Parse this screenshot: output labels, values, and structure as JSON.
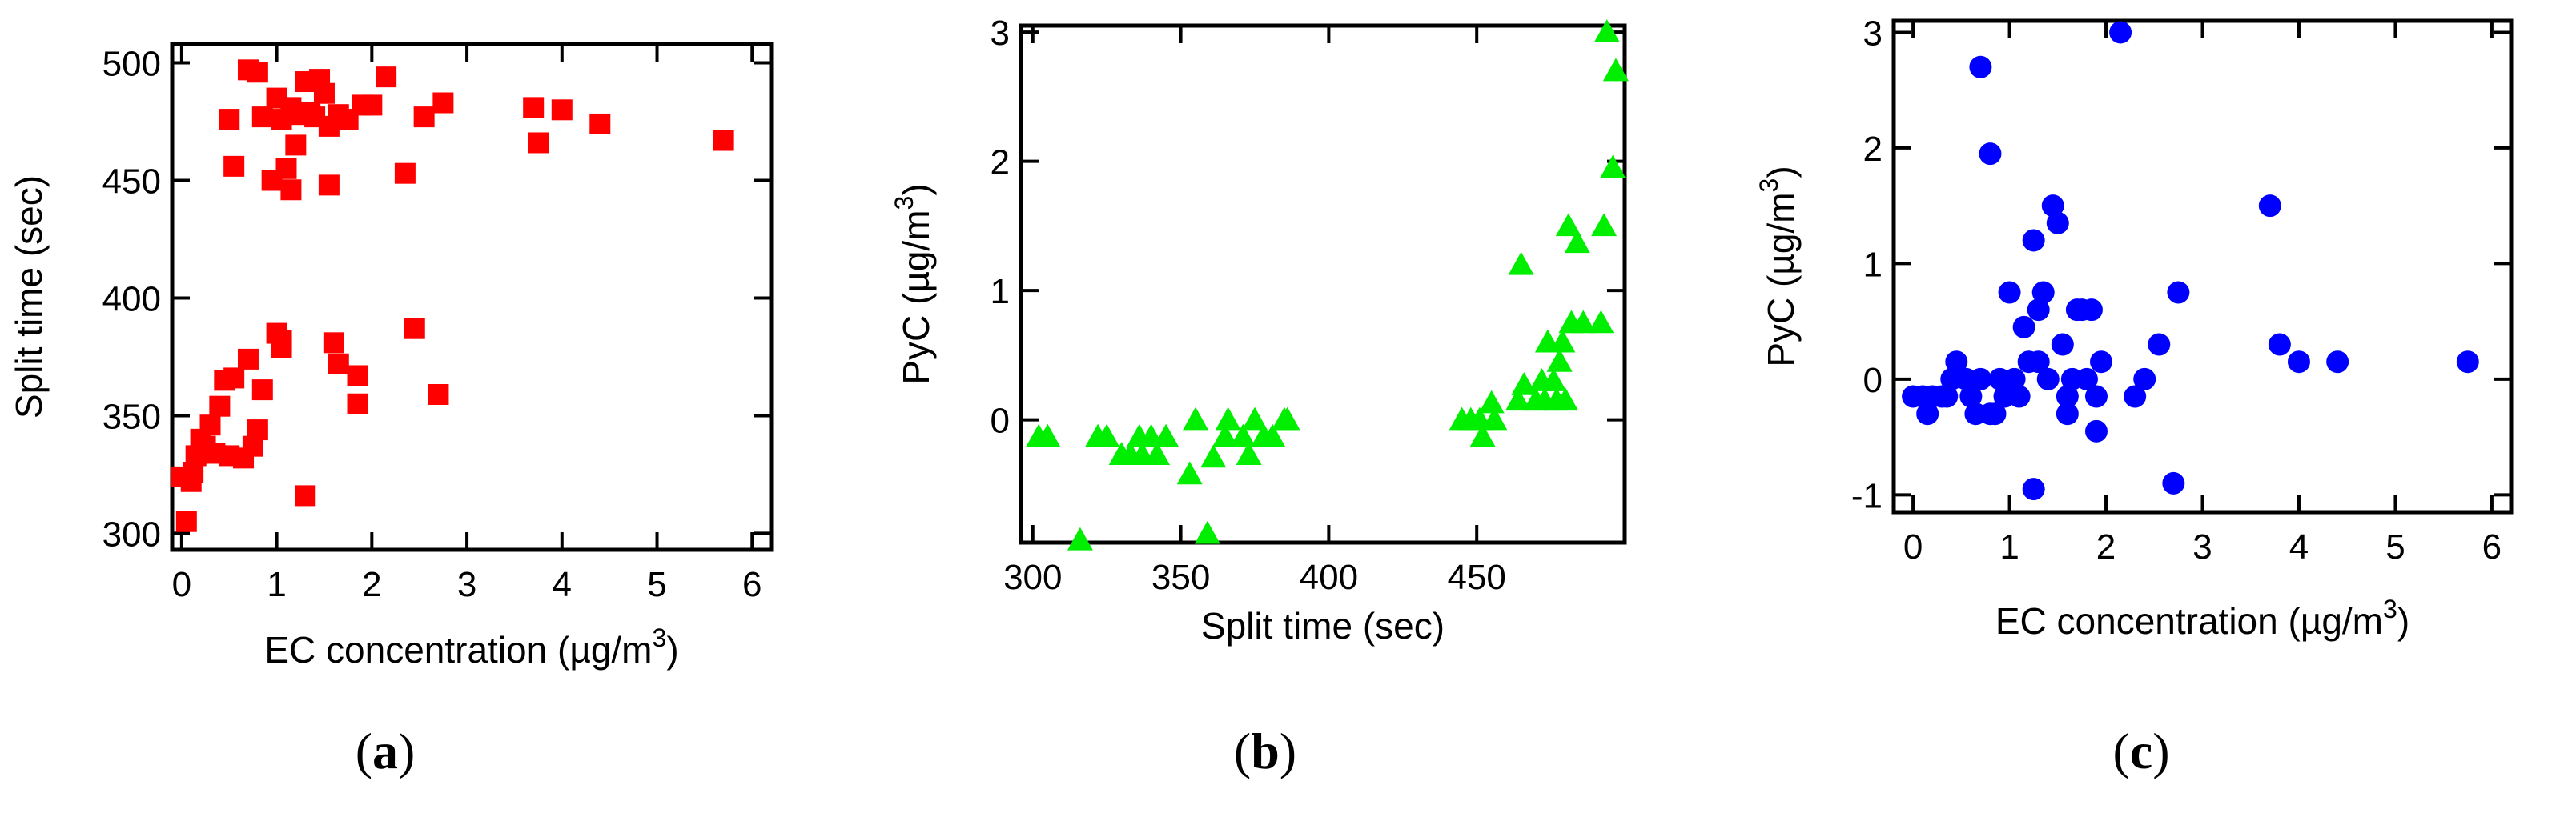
{
  "chart_data": [
    {
      "type": "scatter",
      "panel": "(a)",
      "panel_letter": "a",
      "marker": "square",
      "color": "#ff0000",
      "xlabel": "EC concentration (µg/m",
      "xlabel_sup": "3",
      "xlabel_end": ")",
      "ylabel": "Split time (sec)",
      "xlim": [
        -0.1,
        6.2
      ],
      "ylim": [
        293,
        508
      ],
      "xticks": [
        0,
        1,
        2,
        3,
        4,
        5,
        6
      ],
      "yticks": [
        300,
        350,
        400,
        450,
        500
      ],
      "points": [
        [
          0.0,
          324
        ],
        [
          0.05,
          305
        ],
        [
          0.1,
          322
        ],
        [
          0.12,
          326
        ],
        [
          0.15,
          333
        ],
        [
          0.2,
          340
        ],
        [
          0.25,
          337
        ],
        [
          0.3,
          346
        ],
        [
          0.35,
          334
        ],
        [
          0.4,
          354
        ],
        [
          0.45,
          365
        ],
        [
          0.5,
          333
        ],
        [
          0.55,
          366
        ],
        [
          0.65,
          332
        ],
        [
          0.7,
          374
        ],
        [
          0.75,
          337
        ],
        [
          0.8,
          344
        ],
        [
          0.85,
          361
        ],
        [
          1.0,
          385
        ],
        [
          1.05,
          382
        ],
        [
          1.05,
          379
        ],
        [
          1.3,
          316
        ],
        [
          1.6,
          381
        ],
        [
          1.65,
          372
        ],
        [
          1.85,
          367
        ],
        [
          1.85,
          355
        ],
        [
          2.45,
          387
        ],
        [
          2.7,
          359
        ],
        [
          0.5,
          476
        ],
        [
          0.55,
          456
        ],
        [
          0.7,
          497
        ],
        [
          0.8,
          496
        ],
        [
          0.85,
          477
        ],
        [
          0.95,
          450
        ],
        [
          1.0,
          485
        ],
        [
          1.05,
          476
        ],
        [
          1.1,
          455
        ],
        [
          1.15,
          446
        ],
        [
          1.15,
          481
        ],
        [
          1.2,
          465
        ],
        [
          1.25,
          478
        ],
        [
          1.3,
          492
        ],
        [
          1.35,
          479
        ],
        [
          1.4,
          477
        ],
        [
          1.45,
          493
        ],
        [
          1.5,
          487
        ],
        [
          1.55,
          448
        ],
        [
          1.55,
          473
        ],
        [
          1.65,
          478
        ],
        [
          1.75,
          476
        ],
        [
          1.9,
          482
        ],
        [
          2.0,
          482
        ],
        [
          2.15,
          494
        ],
        [
          2.35,
          453
        ],
        [
          2.55,
          477
        ],
        [
          2.75,
          483
        ],
        [
          3.7,
          481
        ],
        [
          3.75,
          466
        ],
        [
          4.0,
          480
        ],
        [
          4.4,
          474
        ],
        [
          5.7,
          467
        ]
      ]
    },
    {
      "type": "scatter",
      "panel": "(b)",
      "panel_letter": "b",
      "marker": "triangle",
      "color": "#00ee00",
      "xlabel": "Split time (sec)",
      "ylabel": "PyC (µg/m",
      "ylabel_sup": "3",
      "ylabel_end": ")",
      "xlim": [
        296,
        500
      ],
      "ylim": [
        -0.95,
        3.05
      ],
      "xticks": [
        300,
        350,
        400,
        450
      ],
      "yticks": [
        0,
        1,
        2,
        3
      ],
      "points": [
        [
          302,
          -0.13
        ],
        [
          305,
          -0.13
        ],
        [
          316,
          -0.93
        ],
        [
          322,
          -0.13
        ],
        [
          325,
          -0.13
        ],
        [
          330,
          -0.27
        ],
        [
          333,
          -0.27
        ],
        [
          336,
          -0.13
        ],
        [
          337,
          -0.27
        ],
        [
          340,
          -0.13
        ],
        [
          342,
          -0.27
        ],
        [
          345,
          -0.13
        ],
        [
          353,
          -0.42
        ],
        [
          355,
          0.0
        ],
        [
          359,
          -0.88
        ],
        [
          361,
          -0.29
        ],
        [
          365,
          -0.13
        ],
        [
          366,
          0.0
        ],
        [
          371,
          -0.13
        ],
        [
          373,
          -0.27
        ],
        [
          375,
          0.0
        ],
        [
          378,
          -0.13
        ],
        [
          381,
          -0.13
        ],
        [
          385,
          0.0
        ],
        [
          386,
          0.0
        ],
        [
          445,
          0.0
        ],
        [
          448,
          0.0
        ],
        [
          451,
          0.0
        ],
        [
          452,
          -0.13
        ],
        [
          455,
          0.13
        ],
        [
          456,
          0.0
        ],
        [
          464,
          0.15
        ],
        [
          465,
          1.2
        ],
        [
          466,
          0.27
        ],
        [
          470,
          0.15
        ],
        [
          472,
          0.3
        ],
        [
          473,
          0.15
        ],
        [
          474,
          0.6
        ],
        [
          476,
          0.3
        ],
        [
          477,
          0.15
        ],
        [
          478,
          0.45
        ],
        [
          479,
          0.6
        ],
        [
          480,
          0.15
        ],
        [
          481,
          1.5
        ],
        [
          482,
          0.75
        ],
        [
          484,
          1.37
        ],
        [
          486,
          0.75
        ],
        [
          492,
          0.75
        ],
        [
          493,
          1.5
        ],
        [
          494,
          3.0
        ],
        [
          496,
          1.95
        ],
        [
          497,
          2.7
        ]
      ]
    },
    {
      "type": "scatter",
      "panel": "(c)",
      "panel_letter": "c",
      "marker": "circle",
      "color": "#0000ff",
      "xlabel": "EC concentration (µg/m",
      "xlabel_sup": "3",
      "xlabel_end": ")",
      "ylabel": "PyC (µg/m",
      "ylabel_sup": "3",
      "ylabel_end": ")",
      "xlim": [
        -0.2,
        6.2
      ],
      "ylim": [
        -1.15,
        3.1
      ],
      "xticks": [
        0,
        1,
        2,
        3,
        4,
        5,
        6
      ],
      "yticks": [
        -1,
        0,
        1,
        2,
        3
      ],
      "points": [
        [
          0.0,
          -0.15
        ],
        [
          0.1,
          -0.15
        ],
        [
          0.15,
          -0.3
        ],
        [
          0.2,
          -0.15
        ],
        [
          0.3,
          -0.15
        ],
        [
          0.35,
          -0.15
        ],
        [
          0.4,
          0.0
        ],
        [
          0.45,
          0.15
        ],
        [
          0.55,
          0.0
        ],
        [
          0.6,
          -0.15
        ],
        [
          0.65,
          -0.3
        ],
        [
          0.7,
          0.0
        ],
        [
          0.7,
          2.7
        ],
        [
          0.8,
          1.95
        ],
        [
          0.8,
          -0.3
        ],
        [
          0.85,
          -0.3
        ],
        [
          0.9,
          0.0
        ],
        [
          0.95,
          -0.15
        ],
        [
          1.0,
          0.75
        ],
        [
          1.05,
          0.0
        ],
        [
          1.1,
          -0.15
        ],
        [
          1.15,
          0.45
        ],
        [
          1.2,
          0.15
        ],
        [
          1.25,
          -0.95
        ],
        [
          1.25,
          1.2
        ],
        [
          1.3,
          0.6
        ],
        [
          1.3,
          0.15
        ],
        [
          1.35,
          0.75
        ],
        [
          1.4,
          0.0
        ],
        [
          1.45,
          1.5
        ],
        [
          1.5,
          1.35
        ],
        [
          1.55,
          0.3
        ],
        [
          1.6,
          -0.15
        ],
        [
          1.6,
          -0.3
        ],
        [
          1.65,
          0.0
        ],
        [
          1.7,
          0.6
        ],
        [
          1.75,
          0.6
        ],
        [
          1.8,
          0.0
        ],
        [
          1.85,
          0.6
        ],
        [
          1.9,
          -0.45
        ],
        [
          1.9,
          -0.15
        ],
        [
          1.95,
          0.15
        ],
        [
          2.15,
          3.0
        ],
        [
          2.3,
          -0.15
        ],
        [
          2.4,
          0.0
        ],
        [
          2.55,
          0.3
        ],
        [
          2.7,
          -0.9
        ],
        [
          2.75,
          0.75
        ],
        [
          3.7,
          1.5
        ],
        [
          3.8,
          0.3
        ],
        [
          4.0,
          0.15
        ],
        [
          4.4,
          0.15
        ],
        [
          5.75,
          0.15
        ]
      ]
    }
  ]
}
